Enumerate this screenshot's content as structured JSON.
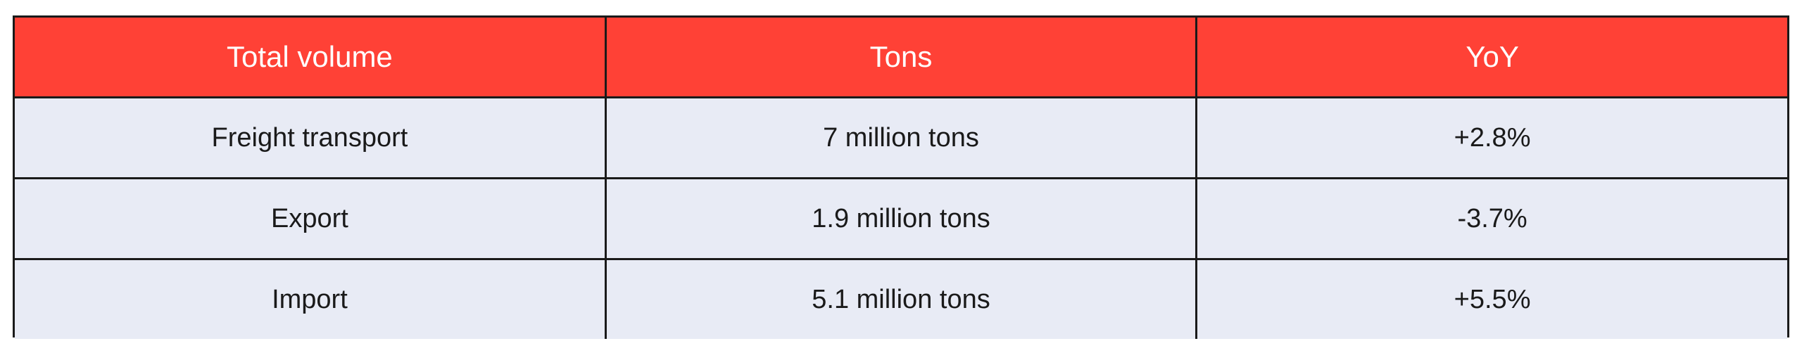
{
  "chart_data": {
    "type": "table",
    "columns": [
      "Total volume",
      "Tons",
      "YoY"
    ],
    "rows": [
      [
        "Freight transport",
        "7 million tons",
        "+2.8%"
      ],
      [
        "Export",
        "1.9 million tons",
        "-3.7%"
      ],
      [
        "Import",
        "5.1 million tons",
        "+5.5%"
      ]
    ]
  },
  "colors": {
    "header_bg": "#ff4136",
    "header_text": "#ffffff",
    "cell_bg": "#e8ebf5",
    "border": "#1a1a1a"
  }
}
